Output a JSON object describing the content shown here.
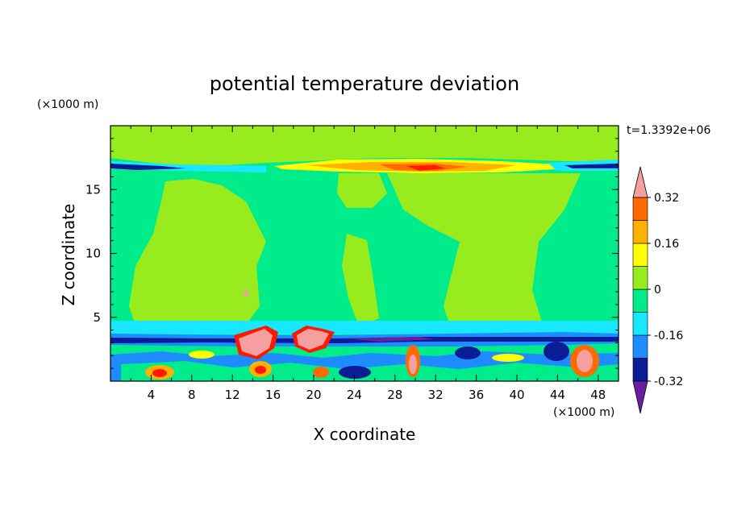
{
  "chart_data": {
    "type": "heatmap",
    "title": "potential temperature deviation",
    "xlabel": "X coordinate",
    "ylabel": "Z coordinate",
    "x_unit": "(×1000 m)",
    "y_unit": "(×1000 m)",
    "time_label": "t=1.3392e+06",
    "xlim": [
      0,
      50
    ],
    "ylim": [
      0,
      20
    ],
    "x_ticks": [
      4,
      8,
      12,
      16,
      20,
      24,
      28,
      32,
      36,
      40,
      44,
      48
    ],
    "y_ticks": [
      5,
      10,
      15
    ],
    "colorbar": {
      "levels": [
        -0.4,
        -0.32,
        -0.24,
        -0.16,
        -0.08,
        0,
        0.08,
        0.16,
        0.24,
        0.32,
        0.4
      ],
      "tick_labels": [
        "0.32",
        "0.16",
        "0",
        "-0.16",
        "-0.32"
      ],
      "tick_values": [
        0.32,
        0.16,
        0,
        -0.16,
        -0.32
      ],
      "colors_low_to_high": [
        "#6a1fa0",
        "#0a1c96",
        "#1c8cff",
        "#18e8ff",
        "#00ec8a",
        "#98ec1e",
        "#ffff00",
        "#ffb000",
        "#ff6a00",
        "#ff1800",
        "#f5a0a0"
      ]
    }
  }
}
